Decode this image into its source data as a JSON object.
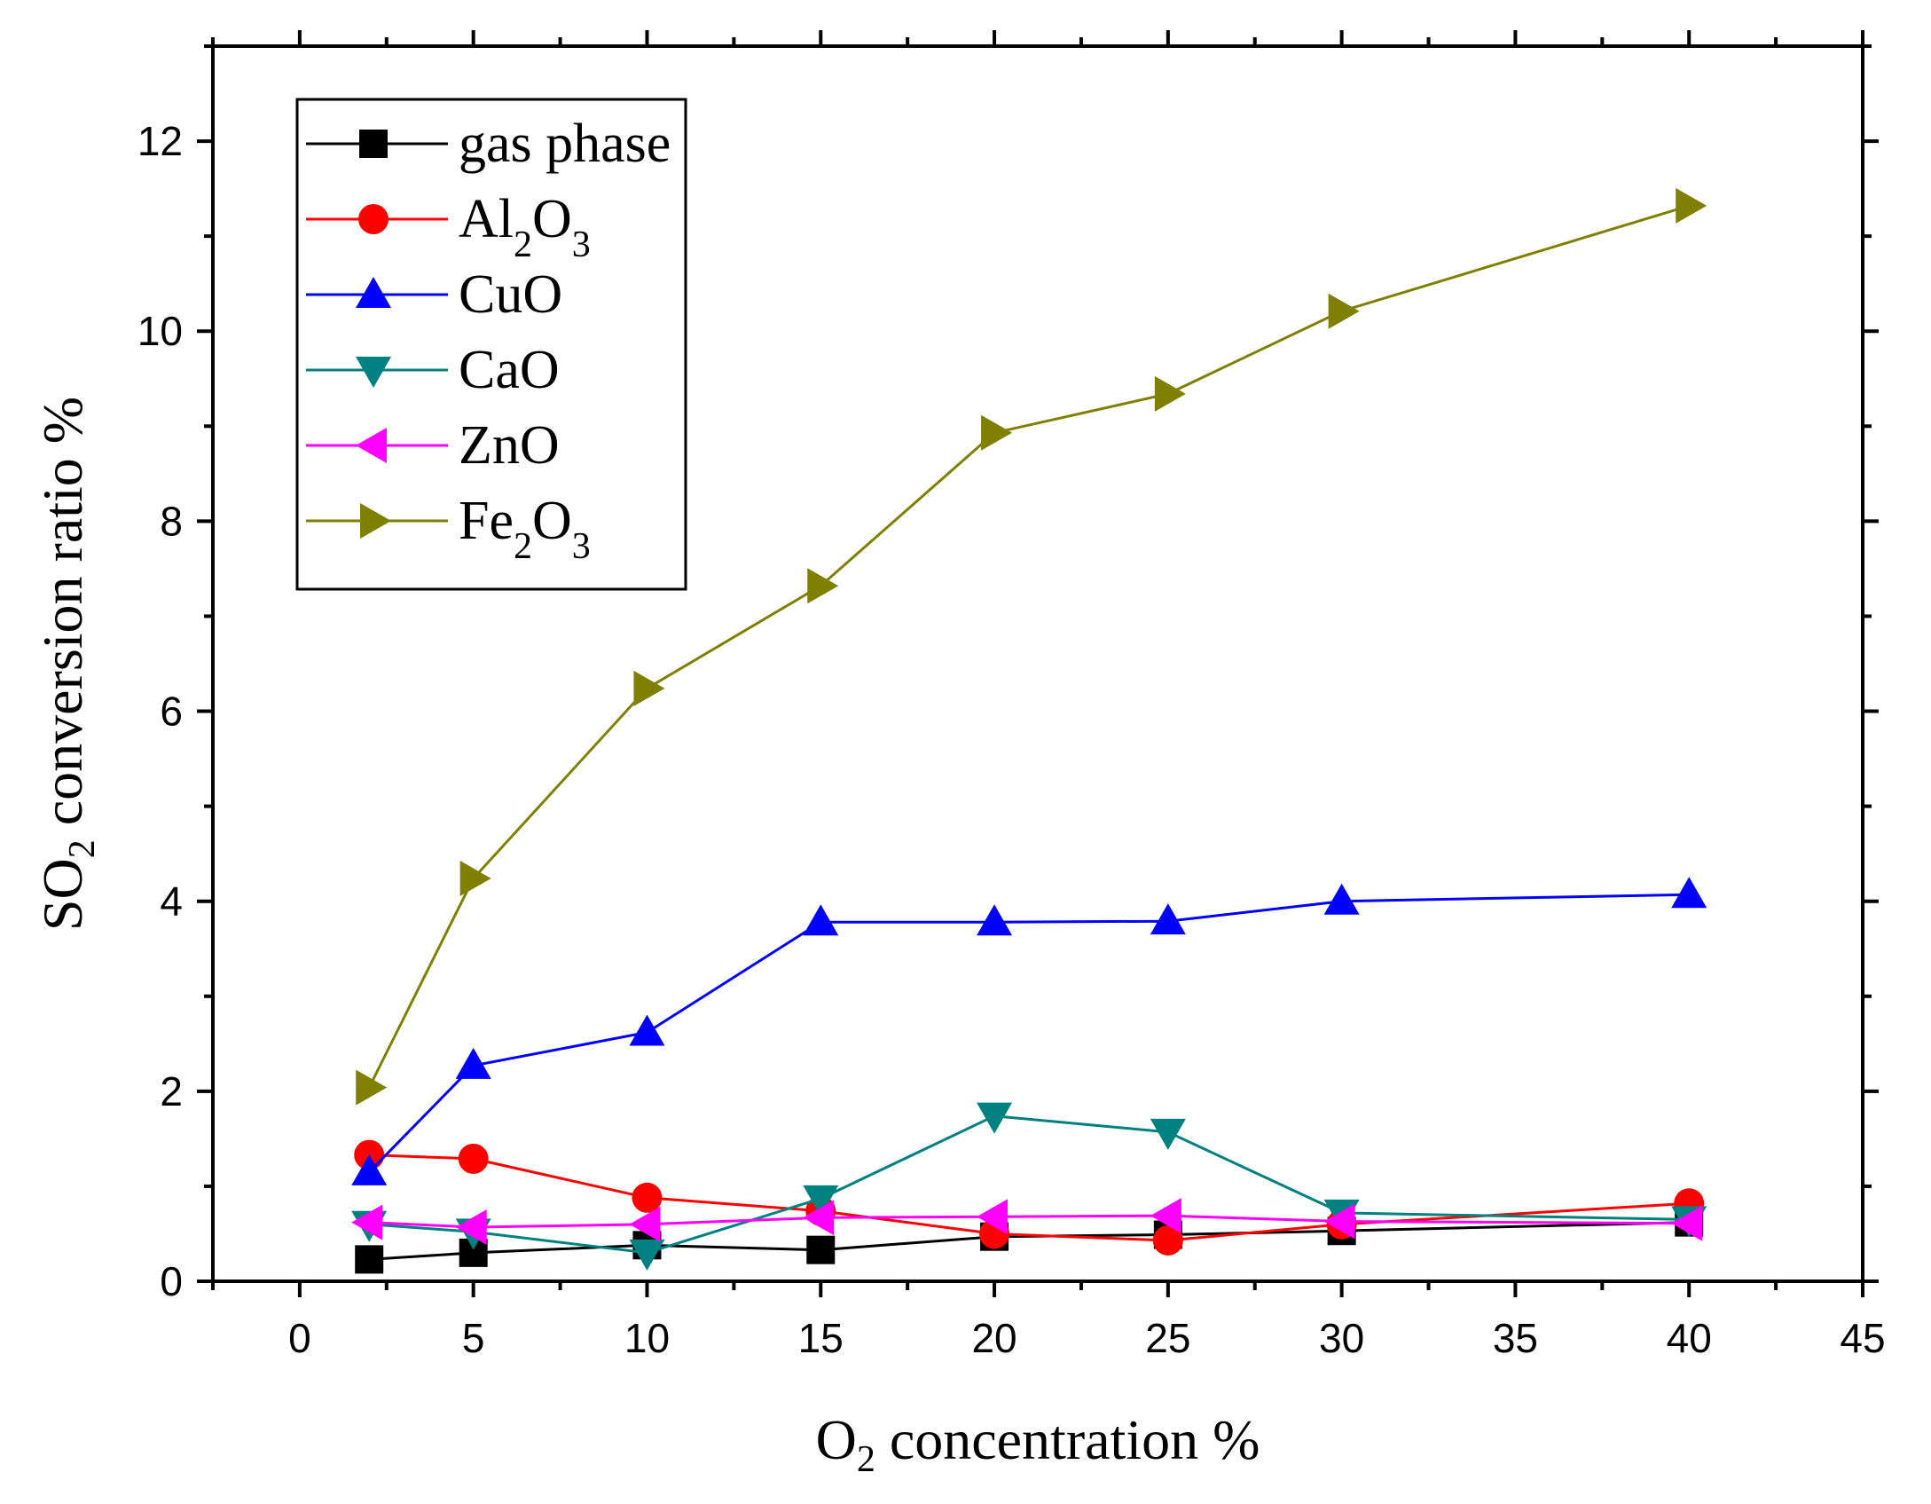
{
  "chart_data": {
    "type": "line",
    "title": "",
    "xlabel": {
      "prefix": "O",
      "sub": "2",
      "suffix": " concentration %"
    },
    "ylabel": {
      "prefix": "SO",
      "sub": "2",
      "suffix": " conversion ratio %"
    },
    "xlim": [
      -2.5,
      45
    ],
    "ylim": [
      0,
      13
    ],
    "xticks": [
      0,
      5,
      10,
      15,
      20,
      25,
      30,
      35,
      40,
      45
    ],
    "xtick_labels": [
      "0",
      "5",
      "10",
      "15",
      "20",
      "25",
      "30",
      "35",
      "40",
      "45"
    ],
    "yticks": [
      0,
      2,
      4,
      6,
      8,
      10,
      12
    ],
    "ytick_labels": [
      "0",
      "2",
      "4",
      "6",
      "8",
      "10",
      "12"
    ],
    "x": [
      2,
      5,
      10,
      15,
      20,
      25,
      30,
      40
    ],
    "legend_position": "top-left",
    "series": [
      {
        "name": "gas phase",
        "label": {
          "main": "gas phase",
          "sub": "",
          "after": ""
        },
        "color": "#000000",
        "marker": "square",
        "values": [
          0.23,
          0.3,
          0.38,
          0.33,
          0.47,
          0.49,
          0.53,
          0.62
        ]
      },
      {
        "name": "Al2O3",
        "label": {
          "main": "Al",
          "sub": "2",
          "after": "O",
          "sub2": "3"
        },
        "color": "#ff0000",
        "marker": "circle",
        "values": [
          1.33,
          1.29,
          0.88,
          0.74,
          0.5,
          0.43,
          0.6,
          0.82
        ]
      },
      {
        "name": "CuO",
        "label": {
          "main": "CuO",
          "sub": "",
          "after": ""
        },
        "color": "#0000ff",
        "marker": "triangle-up",
        "values": [
          1.15,
          2.27,
          2.62,
          3.78,
          3.78,
          3.79,
          4.0,
          4.07
        ]
      },
      {
        "name": "CaO",
        "label": {
          "main": "CaO",
          "sub": "",
          "after": ""
        },
        "color": "#008080",
        "marker": "triangle-down",
        "values": [
          0.6,
          0.52,
          0.3,
          0.87,
          1.74,
          1.57,
          0.72,
          0.65
        ]
      },
      {
        "name": "ZnO",
        "label": {
          "main": "ZnO",
          "sub": "",
          "after": ""
        },
        "color": "#ff00ff",
        "marker": "triangle-left",
        "values": [
          0.62,
          0.57,
          0.6,
          0.67,
          0.68,
          0.69,
          0.63,
          0.61
        ]
      },
      {
        "name": "Fe2O3",
        "label": {
          "main": "Fe",
          "sub": "2",
          "after": "O",
          "sub2": "3"
        },
        "color": "#808000",
        "marker": "triangle-right",
        "values": [
          2.04,
          4.24,
          6.24,
          7.32,
          8.93,
          9.34,
          10.21,
          11.32
        ]
      }
    ]
  }
}
